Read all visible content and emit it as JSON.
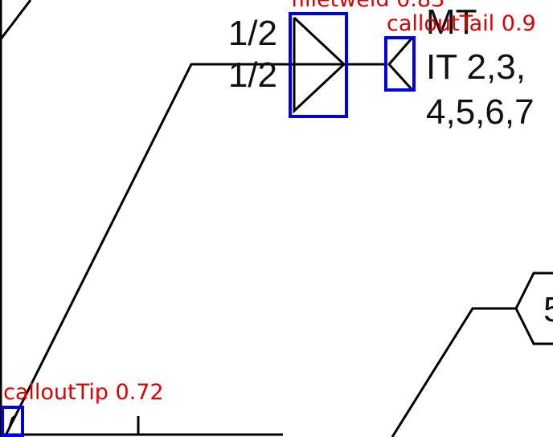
{
  "drawing": {
    "weld_sizes": [
      "1/2",
      "1/2"
    ],
    "note": [
      "MT",
      "IT 2,3,",
      "4,5,6,7"
    ],
    "balloon": "5"
  },
  "detections": [
    {
      "label": "filletweld 0.83"
    },
    {
      "label": "calloutTail 0.9"
    },
    {
      "label": "calloutTip 0.72"
    }
  ]
}
